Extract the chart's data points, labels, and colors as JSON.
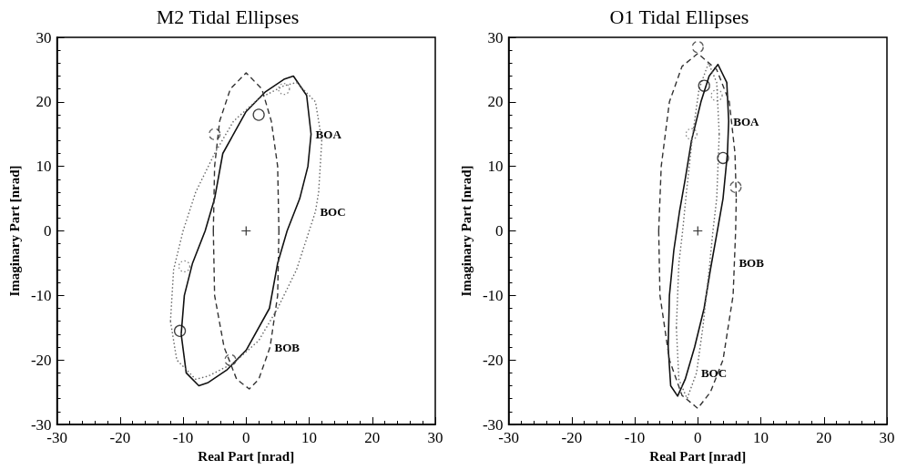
{
  "chart_data": [
    {
      "type": "line",
      "title": "M2 Tidal Ellipses",
      "xlabel": "Real Part [nrad]",
      "ylabel": "Imaginary Part [nrad]",
      "xlim": [
        -30,
        30
      ],
      "ylim": [
        -30,
        30
      ],
      "xticks": [
        -30,
        -20,
        -10,
        0,
        10,
        20,
        30
      ],
      "yticks": [
        -30,
        -20,
        -10,
        0,
        10,
        20,
        30
      ],
      "grid": false,
      "marker": "none",
      "series": [
        {
          "color": "#111111",
          "line_style": "solid",
          "x": [
            -10.3,
            -9.8,
            -8.5,
            -6.5,
            -5,
            -3.7,
            0,
            3,
            6,
            7.5,
            9.6,
            10.3,
            null,
            -10.3,
            -9.5,
            -7.5,
            -6,
            -3,
            0,
            3.7,
            5,
            6.5,
            8.5,
            9.8,
            10.3
          ],
          "values": [
            -16,
            -10,
            -5,
            0,
            5,
            12,
            18.5,
            21.5,
            23.5,
            24,
            21,
            15,
            null,
            -16,
            -22,
            -24,
            -23.5,
            -21.5,
            -18.5,
            -12,
            -5,
            0,
            5,
            10,
            15
          ]
        },
        {
          "color": "#666666",
          "line_style": "dotted",
          "x": [
            -12,
            -11.5,
            -10,
            -8,
            -5,
            -2,
            2,
            6,
            8,
            11,
            12,
            null,
            -12,
            -11,
            -8,
            -6,
            -2,
            2,
            5,
            8,
            10,
            11,
            11.5,
            12
          ],
          "values": [
            -14,
            -6,
            0,
            6,
            12,
            17,
            20.5,
            22.5,
            23,
            20,
            14,
            null,
            -14,
            -20,
            -23,
            -22.5,
            -20.5,
            -17,
            -12,
            -6,
            0,
            3,
            6,
            14
          ]
        },
        {
          "color": "#333333",
          "line_style": "dashed",
          "x": [
            -5.2,
            -5,
            -4.2,
            -2.5,
            0,
            2.5,
            4,
            5,
            5.2,
            null,
            -5.2,
            -5,
            -3.5,
            -1.5,
            0.5,
            2,
            3.8,
            5,
            5.2
          ],
          "values": [
            0,
            10,
            17,
            22,
            24.5,
            22,
            17,
            10,
            0,
            null,
            0,
            -10,
            -18,
            -23,
            -24.5,
            -23,
            -18,
            -10,
            0
          ]
        },
        {
          "type": "scatter",
          "marker": "circle",
          "color": "#111111",
          "line_style": "solid",
          "x": [
            2,
            -10.5
          ],
          "values": [
            18,
            -15.5
          ]
        },
        {
          "type": "scatter",
          "marker": "circle",
          "color": "#666666",
          "line_style": "dotted",
          "x": [
            6,
            -9.8
          ],
          "values": [
            22,
            -5.5
          ]
        },
        {
          "type": "scatter",
          "marker": "circle",
          "color": "#333333",
          "line_style": "dashed",
          "x": [
            -5,
            -2.5
          ],
          "values": [
            15,
            -20
          ]
        },
        {
          "type": "scatter",
          "marker": "cross",
          "color": "#000000",
          "x": [
            0
          ],
          "values": [
            0
          ]
        }
      ],
      "annotations": [
        {
          "text": "BOA",
          "x": 10.3,
          "y": 15
        },
        {
          "text": "BOC",
          "x": 11,
          "y": 3
        },
        {
          "text": "BOB",
          "x": 3.8,
          "y": -18
        }
      ]
    },
    {
      "type": "line",
      "title": "O1 Tidal Ellipses",
      "xlabel": "Real Part [nrad]",
      "ylabel": "Imaginary Part [nrad]",
      "xlim": [
        -30,
        30
      ],
      "ylim": [
        -30,
        30
      ],
      "xticks": [
        -30,
        -20,
        -10,
        0,
        10,
        20,
        30
      ],
      "yticks": [
        -30,
        -20,
        -10,
        0,
        10,
        20,
        30
      ],
      "grid": false,
      "marker": "none",
      "series": [
        {
          "color": "#111111",
          "line_style": "solid",
          "x": [
            -4.7,
            -4.5,
            -3.8,
            -2.9,
            -2,
            -1,
            0.5,
            1.8,
            3.2,
            4.6,
            4.9,
            null,
            -4.7,
            -4.3,
            -3.2,
            -2,
            -0.5,
            1,
            2,
            3.1,
            4,
            4.7,
            4.9
          ],
          "values": [
            -18,
            -10,
            -3,
            3,
            8,
            14,
            20,
            24,
            25.8,
            23,
            17,
            null,
            -18,
            -24,
            -25.6,
            -23,
            -18,
            -12,
            -6,
            0,
            5,
            12,
            17
          ]
        },
        {
          "color": "#666666",
          "line_style": "dotted",
          "x": [
            -3.4,
            -3,
            -2.4,
            -1.8,
            -0.8,
            0.2,
            1.7,
            3,
            3.4,
            null,
            -3.4,
            -3,
            -1.7,
            -0.2,
            0.8,
            1.8,
            2.4,
            3,
            3.4
          ],
          "values": [
            -15,
            -5,
            0,
            6,
            15,
            22,
            26,
            23,
            15,
            null,
            -15,
            -23,
            -26,
            -22,
            -15,
            -6,
            0,
            5,
            15
          ]
        },
        {
          "color": "#333333",
          "line_style": "dashed",
          "x": [
            -6.2,
            -5.8,
            -4.5,
            -2.5,
            0,
            3,
            5,
            5.9,
            6.1,
            null,
            -6.2,
            -6,
            -4.5,
            -2.5,
            0,
            2,
            4,
            5.6,
            5.8,
            6,
            6.1
          ],
          "values": [
            0,
            10,
            20,
            25.5,
            27.5,
            25,
            20,
            12,
            5,
            null,
            0,
            -10,
            -20,
            -25.5,
            -27.5,
            -25,
            -20,
            -10,
            -5,
            0,
            5
          ]
        },
        {
          "type": "scatter",
          "marker": "circle",
          "color": "#111111",
          "line_style": "solid",
          "x": [
            1,
            4
          ],
          "values": [
            22.5,
            11.3
          ]
        },
        {
          "type": "scatter",
          "marker": "circle",
          "color": "#666666",
          "line_style": "dotted",
          "x": [
            3,
            -1
          ],
          "values": [
            21,
            15
          ]
        },
        {
          "type": "scatter",
          "marker": "circle",
          "color": "#333333",
          "line_style": "dashed",
          "x": [
            0,
            6
          ],
          "values": [
            28.5,
            6.8
          ]
        },
        {
          "type": "scatter",
          "marker": "cross",
          "color": "#000000",
          "x": [
            0
          ],
          "values": [
            0
          ]
        }
      ],
      "annotations": [
        {
          "text": "BOA",
          "x": 4.9,
          "y": 17
        },
        {
          "text": "BOB",
          "x": 5.8,
          "y": -5
        },
        {
          "text": "BOC",
          "x": -0.2,
          "y": -22
        }
      ]
    }
  ]
}
